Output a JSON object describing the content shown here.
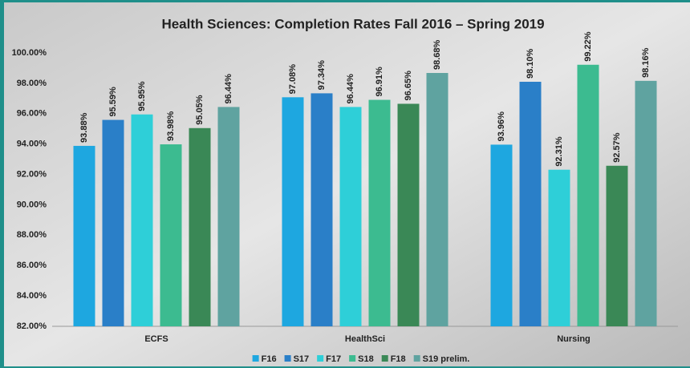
{
  "chart_data": {
    "type": "bar",
    "title": "Health Sciences: Completion Rates Fall 2016 – Spring 2019",
    "categories": [
      "ECFS",
      "HealthSci",
      "Nursing"
    ],
    "series": [
      {
        "name": "F16",
        "color": "#1ea7e0",
        "values": [
          93.88,
          97.08,
          93.96
        ],
        "value_labels": [
          "93.88%",
          "97.08%",
          "93.96%"
        ]
      },
      {
        "name": "S17",
        "color": "#2a7fc8",
        "values": [
          95.59,
          97.34,
          98.1
        ],
        "value_labels": [
          "95.59%",
          "97.34%",
          "98.10%"
        ]
      },
      {
        "name": "F17",
        "color": "#2ecfd8",
        "values": [
          95.95,
          96.44,
          92.31
        ],
        "value_labels": [
          "95.95%",
          "96.44%",
          "92.31%"
        ]
      },
      {
        "name": "S18",
        "color": "#3cbb90",
        "values": [
          93.98,
          96.91,
          99.22
        ],
        "value_labels": [
          "93.98%",
          "96.91%",
          "99.22%"
        ]
      },
      {
        "name": "F18",
        "color": "#3a8856",
        "values": [
          95.05,
          96.65,
          92.57
        ],
        "value_labels": [
          "95.05%",
          "96.65%",
          "92.57%"
        ]
      },
      {
        "name": "S19 prelim.",
        "color": "#5fa3a0",
        "values": [
          96.44,
          98.68,
          98.16
        ],
        "value_labels": [
          "96.44%",
          "98.68%",
          "98.16%"
        ]
      }
    ],
    "ylim": [
      82,
      100
    ],
    "yticks": [
      {
        "value": 82,
        "label": "82.00%"
      },
      {
        "value": 84,
        "label": "84.00%"
      },
      {
        "value": 86,
        "label": "86.00%"
      },
      {
        "value": 88,
        "label": "88.00%"
      },
      {
        "value": 90,
        "label": "90.00%"
      },
      {
        "value": 92,
        "label": "92.00%"
      },
      {
        "value": 94,
        "label": "94.00%"
      },
      {
        "value": 96,
        "label": "96.00%"
      },
      {
        "value": 98,
        "label": "98.00%"
      },
      {
        "value": 100,
        "label": "100.00%"
      }
    ],
    "grid": false,
    "legend": "bottom"
  }
}
